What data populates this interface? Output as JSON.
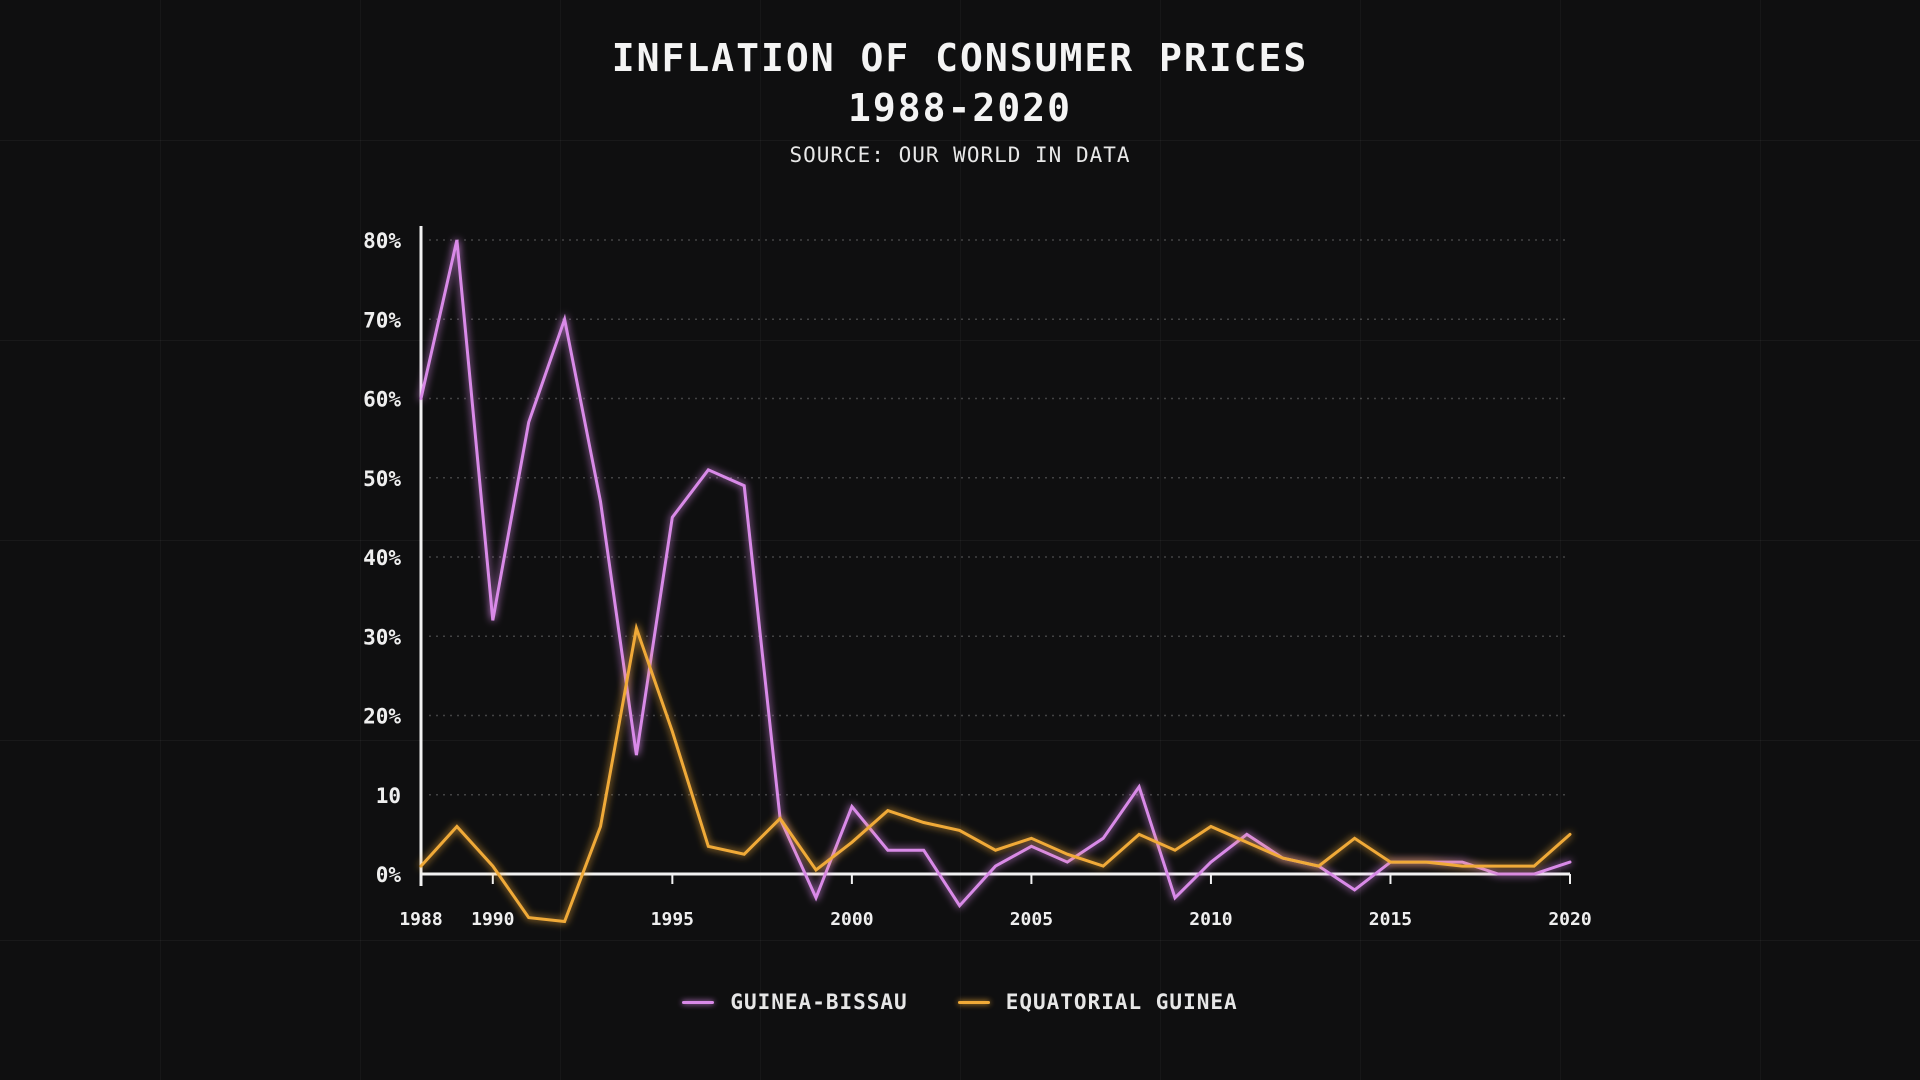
{
  "chart_data": {
    "type": "line",
    "title": [
      "INFLATION OF CONSUMER PRICES",
      "1988-2020"
    ],
    "subtitle": "SOURCE: OUR WORLD IN DATA",
    "x": [
      1988,
      1989,
      1990,
      1991,
      1992,
      1993,
      1994,
      1995,
      1996,
      1997,
      1998,
      1999,
      2000,
      2001,
      2002,
      2003,
      2004,
      2005,
      2006,
      2007,
      2008,
      2009,
      2010,
      2011,
      2012,
      2013,
      2014,
      2015,
      2016,
      2017,
      2018,
      2019,
      2020
    ],
    "xticks": [
      1988,
      1990,
      1995,
      2000,
      2005,
      2010,
      2015,
      2020
    ],
    "xtick_labels": [
      "1988",
      "1990",
      "1995",
      "2000",
      "2005",
      "2010",
      "2015",
      "2020"
    ],
    "xlim": [
      1988,
      2020
    ],
    "ylim": [
      0,
      80
    ],
    "yticks": [
      0,
      10,
      20,
      30,
      40,
      50,
      60,
      70,
      80
    ],
    "ytick_labels": [
      "0%",
      "10",
      "20%",
      "30%",
      "40%",
      "50%",
      "60%",
      "70%",
      "80%"
    ],
    "grid": true,
    "legend_position": "bottom-center",
    "series": [
      {
        "name": "GUINEA-BISSAU",
        "color": "#d98ae8",
        "values": [
          60,
          80,
          32,
          57,
          70,
          47,
          15,
          45,
          51,
          49,
          7,
          -3,
          8.5,
          3,
          3,
          -4,
          1,
          3.5,
          1.5,
          4.5,
          11,
          -3,
          1.5,
          5,
          2,
          1,
          -2,
          1.5,
          1.5,
          1.5,
          0,
          0,
          1.5
        ]
      },
      {
        "name": "EQUATORIAL GUINEA",
        "color": "#f0aa38",
        "values": [
          1,
          6,
          1,
          -5.5,
          -6,
          6,
          31,
          18,
          3.5,
          2.5,
          7,
          0.5,
          4,
          8,
          6.5,
          5.5,
          3,
          4.5,
          2.5,
          1,
          5,
          3,
          6,
          4,
          2,
          1,
          4.5,
          1.5,
          1.5,
          1,
          1,
          1,
          5
        ]
      }
    ]
  }
}
